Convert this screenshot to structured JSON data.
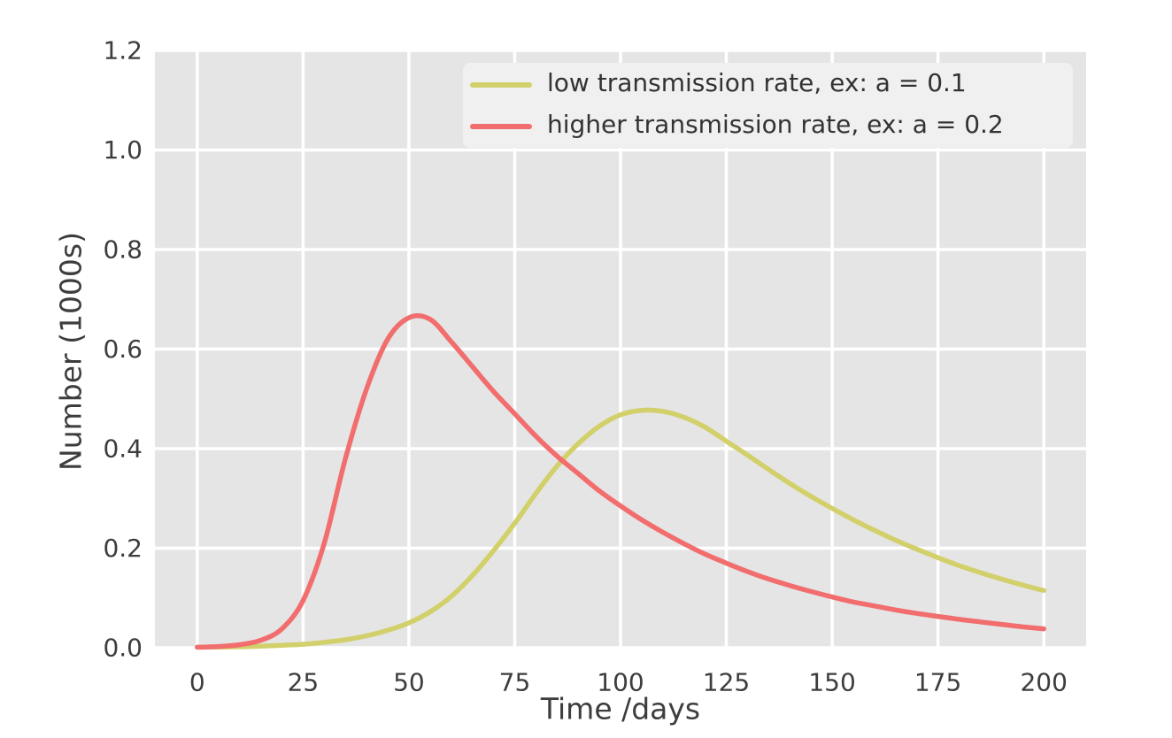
{
  "figure": {
    "background": "#ffffff",
    "plot_background": "#e5e5e5",
    "grid_color": "#ffffff",
    "tick_text_color": "#3d3d3d",
    "legend_background": "#f0f0f0",
    "legend_text_color": "#333333"
  },
  "chart_data": {
    "type": "line",
    "title": "",
    "xlabel": "Time /days",
    "ylabel": "Number (1000s)",
    "xlim": [
      -10,
      210
    ],
    "ylim": [
      0,
      1.2
    ],
    "xticks": [
      0,
      25,
      50,
      75,
      100,
      125,
      150,
      175,
      200
    ],
    "yticks": [
      0,
      0.2,
      0.4,
      0.6,
      0.8,
      1.0,
      1.2
    ],
    "ytick_decimals": 1,
    "grid": true,
    "legend_position": "upper right",
    "x": [
      0,
      5,
      10,
      15,
      20,
      25,
      30,
      35,
      40,
      45,
      50,
      55,
      60,
      65,
      70,
      75,
      80,
      85,
      90,
      95,
      100,
      105,
      110,
      115,
      120,
      125,
      130,
      135,
      140,
      145,
      150,
      155,
      160,
      165,
      170,
      175,
      180,
      185,
      190,
      195,
      200
    ],
    "series": [
      {
        "name": "low transmission rate, ex: a = 0.1",
        "color": "#d2d06a",
        "values": [
          0.001,
          0.0015,
          0.002,
          0.003,
          0.005,
          0.007,
          0.011,
          0.016,
          0.024,
          0.035,
          0.05,
          0.072,
          0.103,
          0.145,
          0.195,
          0.25,
          0.31,
          0.365,
          0.41,
          0.445,
          0.468,
          0.477,
          0.475,
          0.463,
          0.443,
          0.415,
          0.387,
          0.358,
          0.33,
          0.304,
          0.28,
          0.257,
          0.236,
          0.216,
          0.198,
          0.181,
          0.165,
          0.151,
          0.138,
          0.126,
          0.115
        ]
      },
      {
        "name": "higher transmission rate, ex: a = 0.2",
        "color": "#f26d6d",
        "values": [
          0.001,
          0.0025,
          0.006,
          0.015,
          0.038,
          0.095,
          0.21,
          0.38,
          0.52,
          0.62,
          0.663,
          0.66,
          0.615,
          0.565,
          0.515,
          0.47,
          0.425,
          0.385,
          0.35,
          0.315,
          0.285,
          0.257,
          0.232,
          0.209,
          0.188,
          0.17,
          0.153,
          0.138,
          0.125,
          0.113,
          0.102,
          0.092,
          0.084,
          0.076,
          0.069,
          0.063,
          0.057,
          0.052,
          0.047,
          0.042,
          0.038
        ]
      }
    ]
  }
}
